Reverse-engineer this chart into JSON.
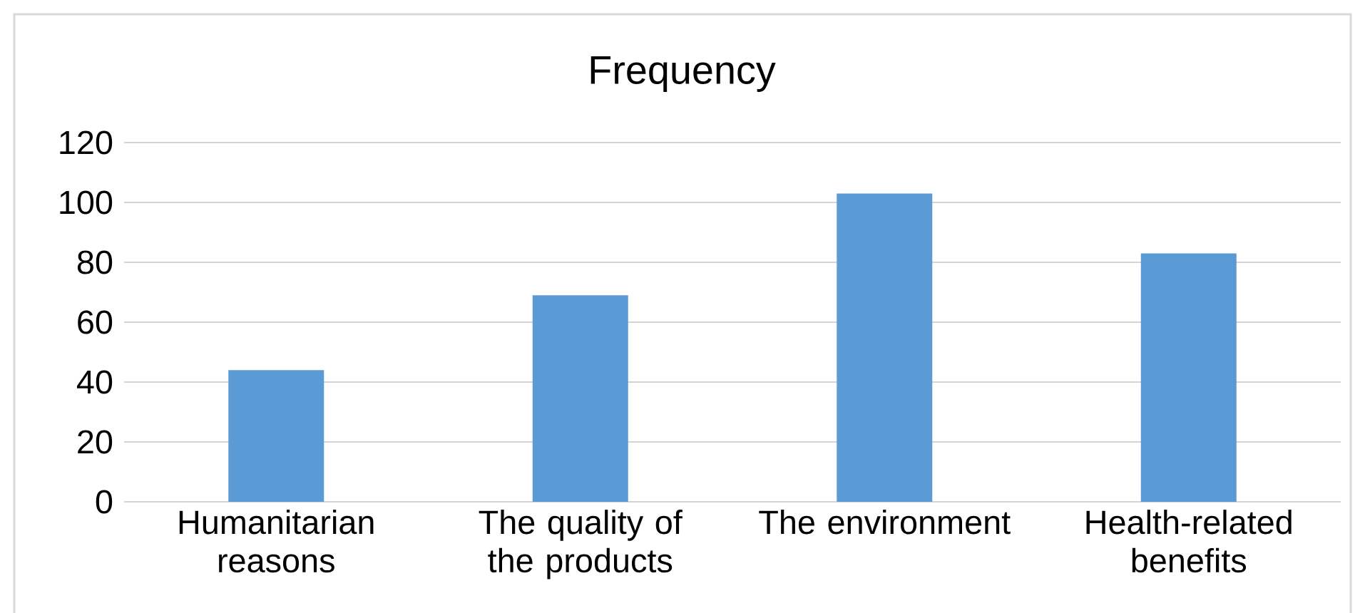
{
  "chart_data": {
    "type": "bar",
    "title": "Frequency",
    "categories": [
      "Humanitarian reasons",
      "The quality of the products",
      "The environment",
      "Health-related benefits"
    ],
    "values": [
      44,
      69,
      103,
      83
    ],
    "color": "#5b9bd5",
    "ylim": [
      0,
      120
    ],
    "yticks": [
      0,
      20,
      40,
      60,
      80,
      100,
      120
    ],
    "grid": "y"
  }
}
